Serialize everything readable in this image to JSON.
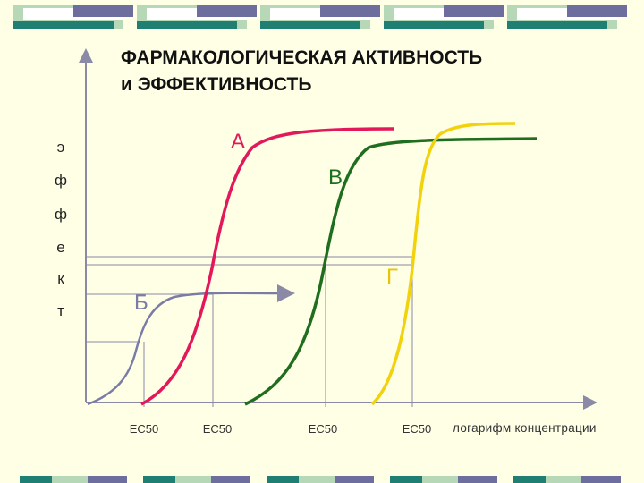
{
  "title": {
    "line1": "ФАРМАКОЛОГИЧЕСКАЯ  АКТИВНОСТЬ",
    "line2": "и ЭФФЕКТИВНОСТЬ"
  },
  "y_axis_letters": [
    "э",
    "ф",
    "ф",
    "е",
    "к",
    "т"
  ],
  "x_axis_label": "логарифм  концентрации",
  "ec_labels": [
    "EC50",
    "EC50",
    "EC50",
    "EC50"
  ],
  "colors": {
    "background": "#FFFFE6",
    "curve_A": "#E2185A",
    "curve_B": "#7B7BA8",
    "curve_V": "#1F6E1F",
    "curve_G": "#F2D20C",
    "deco_teal": "#1E7F72",
    "deco_purple": "#6E6E9E",
    "deco_green": "#B7D8B7"
  },
  "curves": [
    {
      "label": "А",
      "color": "#E2185A",
      "ec50_position": "second EC50 tick",
      "max_response": "high"
    },
    {
      "label": "Б",
      "color": "#7B7BA8",
      "ec50_position": "first EC50 tick",
      "max_response": "low"
    },
    {
      "label": "В",
      "color": "#1F6E1F",
      "ec50_position": "third EC50 tick",
      "max_response": "high"
    },
    {
      "label": "Г",
      "color": "#F2D20C",
      "ec50_position": "fourth EC50 tick",
      "max_response": "high"
    }
  ]
}
